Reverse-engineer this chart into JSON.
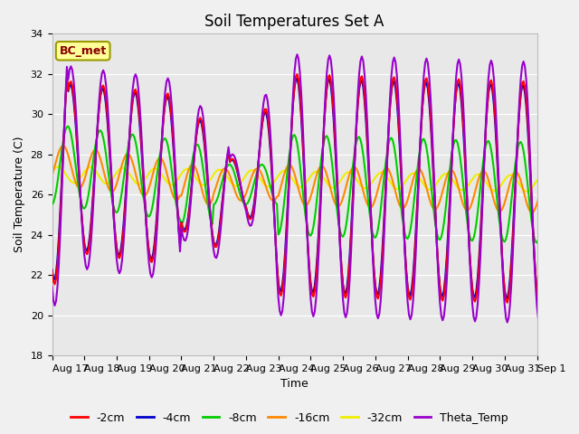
{
  "title": "Soil Temperatures Set A",
  "xlabel": "Time",
  "ylabel": "Soil Temperature (C)",
  "ylim": [
    18,
    34
  ],
  "yticks": [
    18,
    20,
    22,
    24,
    26,
    28,
    30,
    32,
    34
  ],
  "xtick_labels": [
    "Aug 17",
    "Aug 18",
    "Aug 19",
    "Aug 20",
    "Aug 21",
    "Aug 22",
    "Aug 23",
    "Aug 24",
    "Aug 25",
    "Aug 26",
    "Aug 27",
    "Aug 28",
    "Aug 29",
    "Aug 30",
    "Aug 31",
    "Sep 1"
  ],
  "legend_labels": [
    "-2cm",
    "-4cm",
    "-8cm",
    "-16cm",
    "-32cm",
    "Theta_Temp"
  ],
  "line_colors": [
    "#ff0000",
    "#0000cc",
    "#00cc00",
    "#ff8800",
    "#eeee00",
    "#9900cc"
  ],
  "bg_color": "#e8e8e8",
  "fig_color": "#f0f0f0",
  "bc_met_text": "BC_met",
  "bc_met_facecolor": "#ffff99",
  "bc_met_edgecolor": "#999900",
  "bc_met_textcolor": "#880000",
  "title_fontsize": 12,
  "axis_label_fontsize": 9,
  "tick_fontsize": 8,
  "legend_fontsize": 9,
  "mean_temp": 26.5
}
